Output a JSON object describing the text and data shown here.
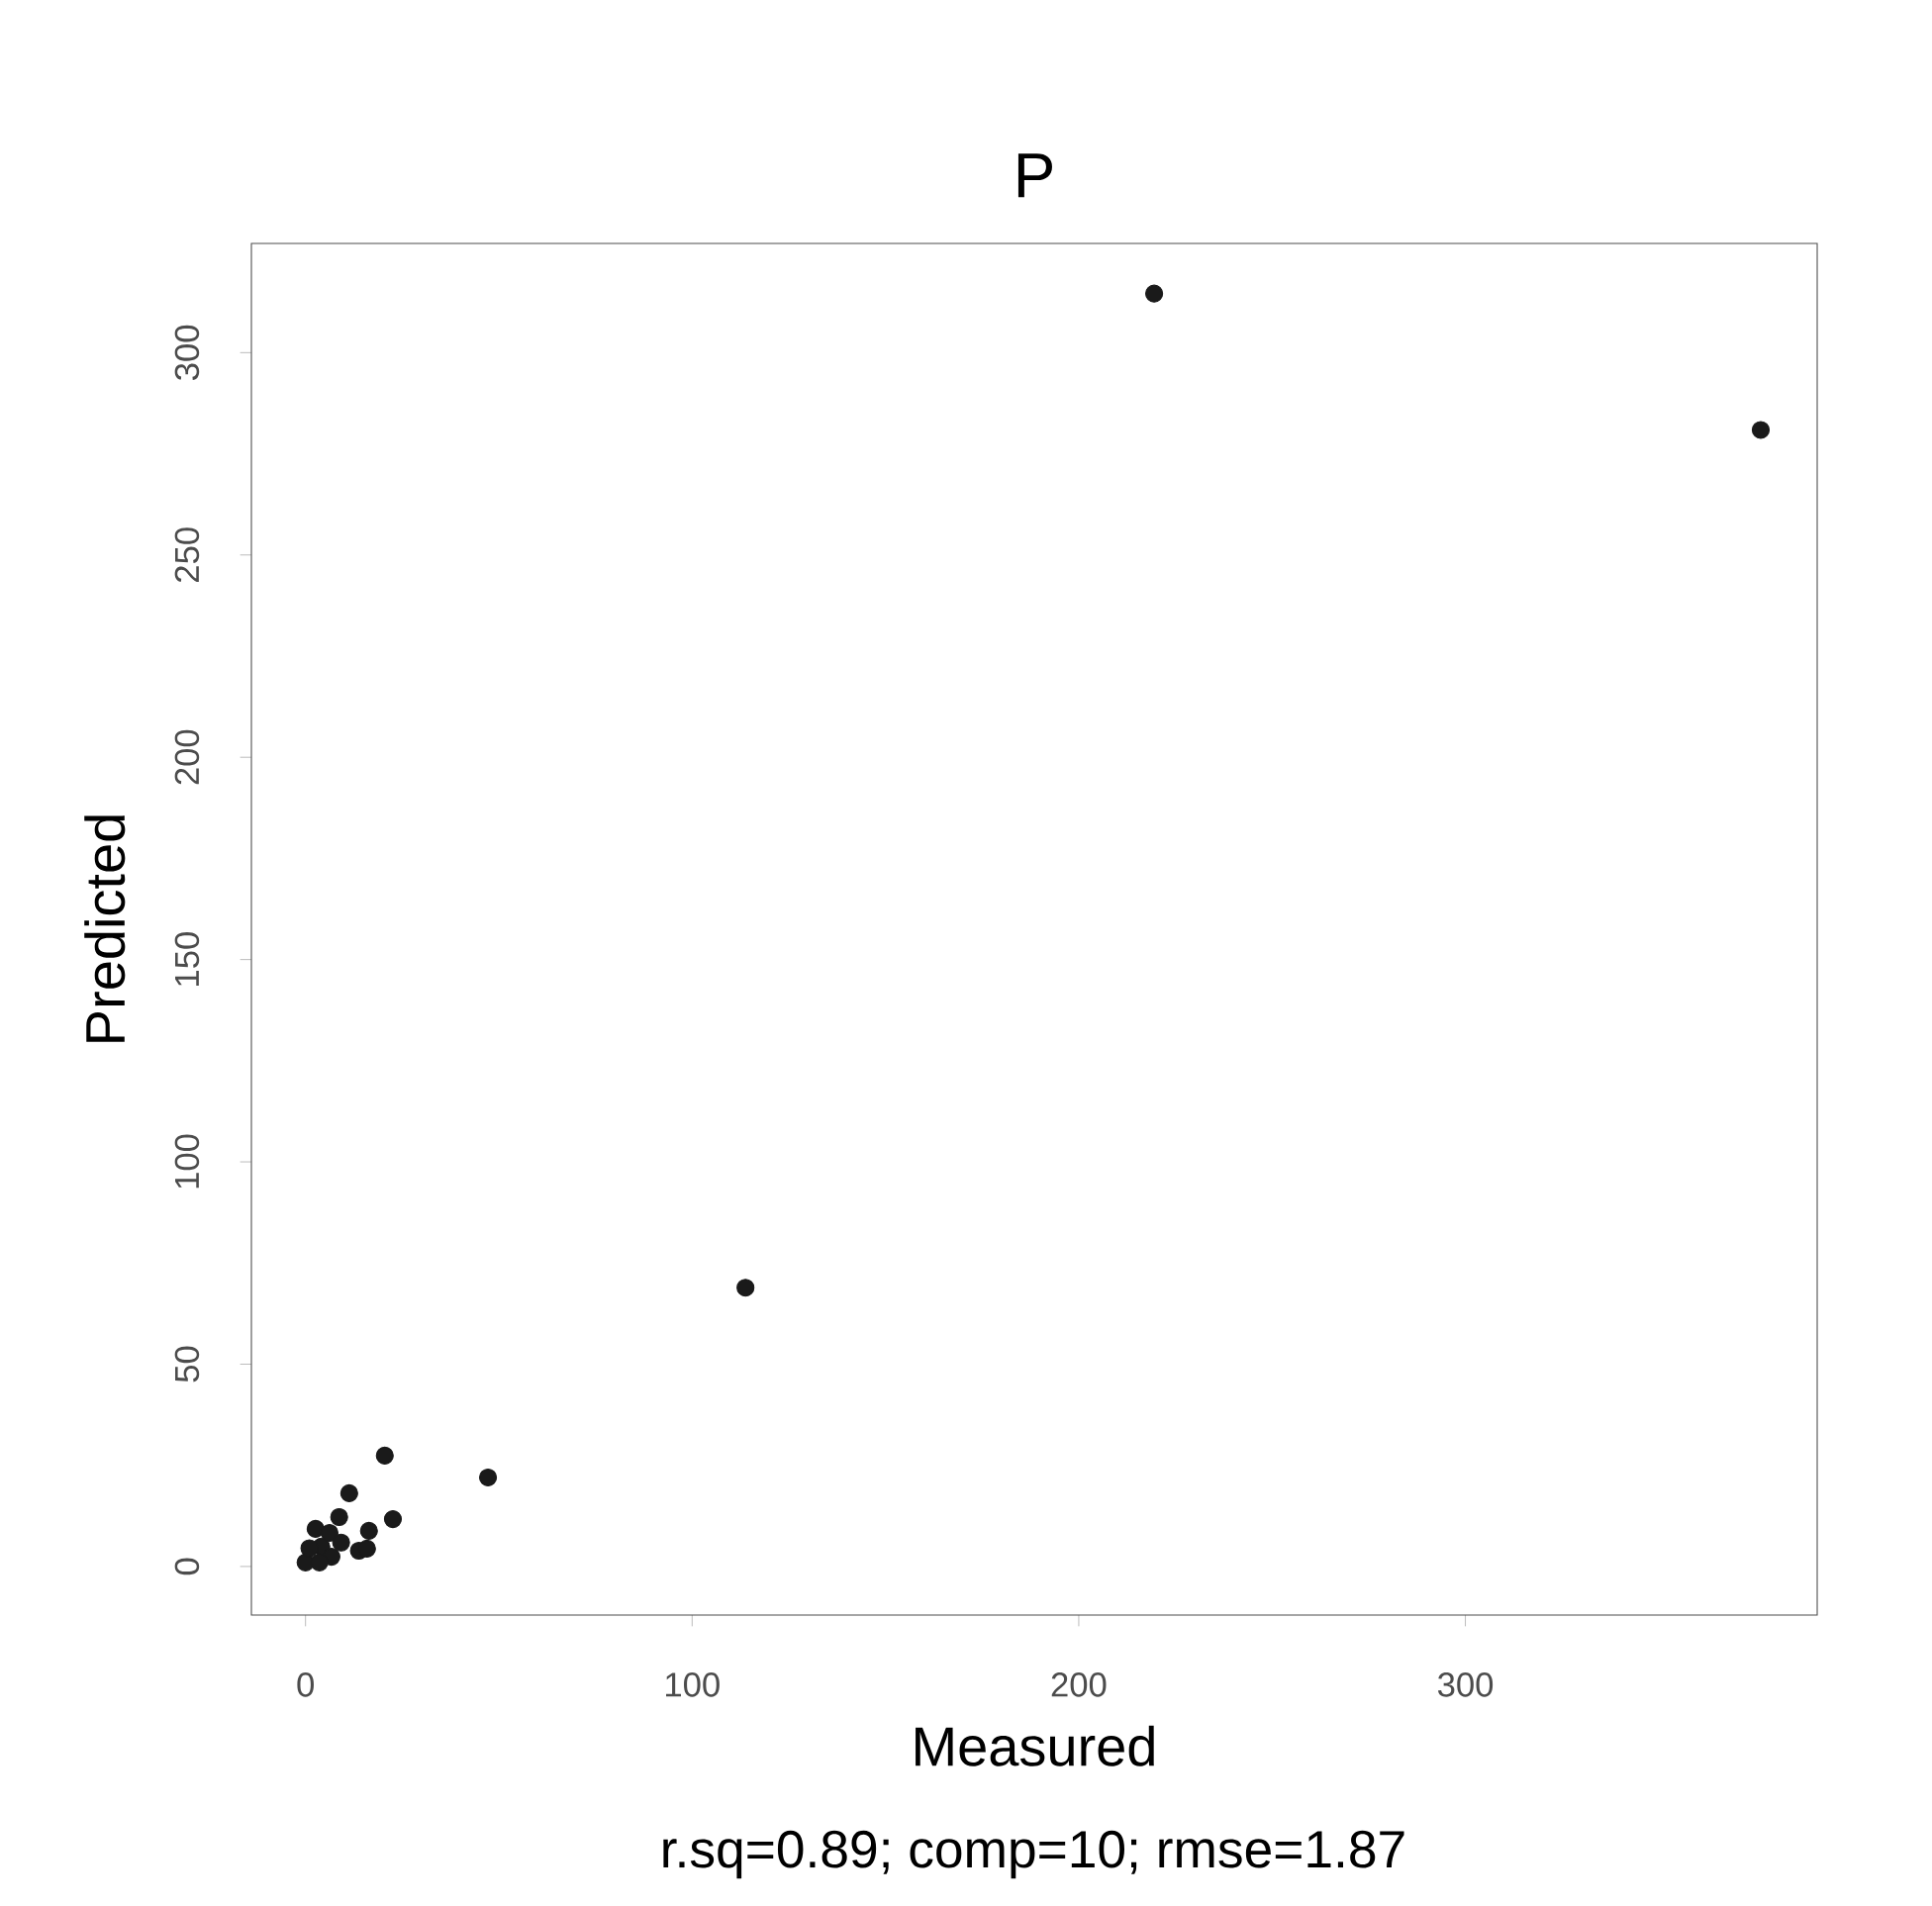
{
  "chart_data": {
    "type": "scatter",
    "title": "P",
    "xlabel": "Measured",
    "ylabel": "Predicted",
    "annotations": [
      "r.sq=0.89; comp=10; rmse=1.87"
    ],
    "x": [
      219.5,
      376.4,
      113.8,
      47.2,
      20.5,
      22.6,
      11.3,
      16.4,
      13.8,
      8.7,
      2.6,
      0,
      4.1,
      6.7,
      1,
      6.2,
      9.2,
      3.6,
      15.9
    ],
    "values": [
      314.6,
      280.9,
      68.9,
      22.0,
      27.4,
      11.7,
      18.1,
      8.8,
      3.9,
      12.2,
      9.3,
      1,
      4.9,
      2.4,
      4.5,
      8.3,
      5.9,
      1.0,
      4.4
    ],
    "color": "#1a1a1a",
    "grid": false,
    "xlim": [
      -14,
      391
    ],
    "ylim": [
      -12,
      327
    ],
    "xticks": [
      0,
      100,
      200,
      300
    ],
    "yticks": [
      0,
      50,
      100,
      150,
      200,
      250,
      300
    ]
  }
}
